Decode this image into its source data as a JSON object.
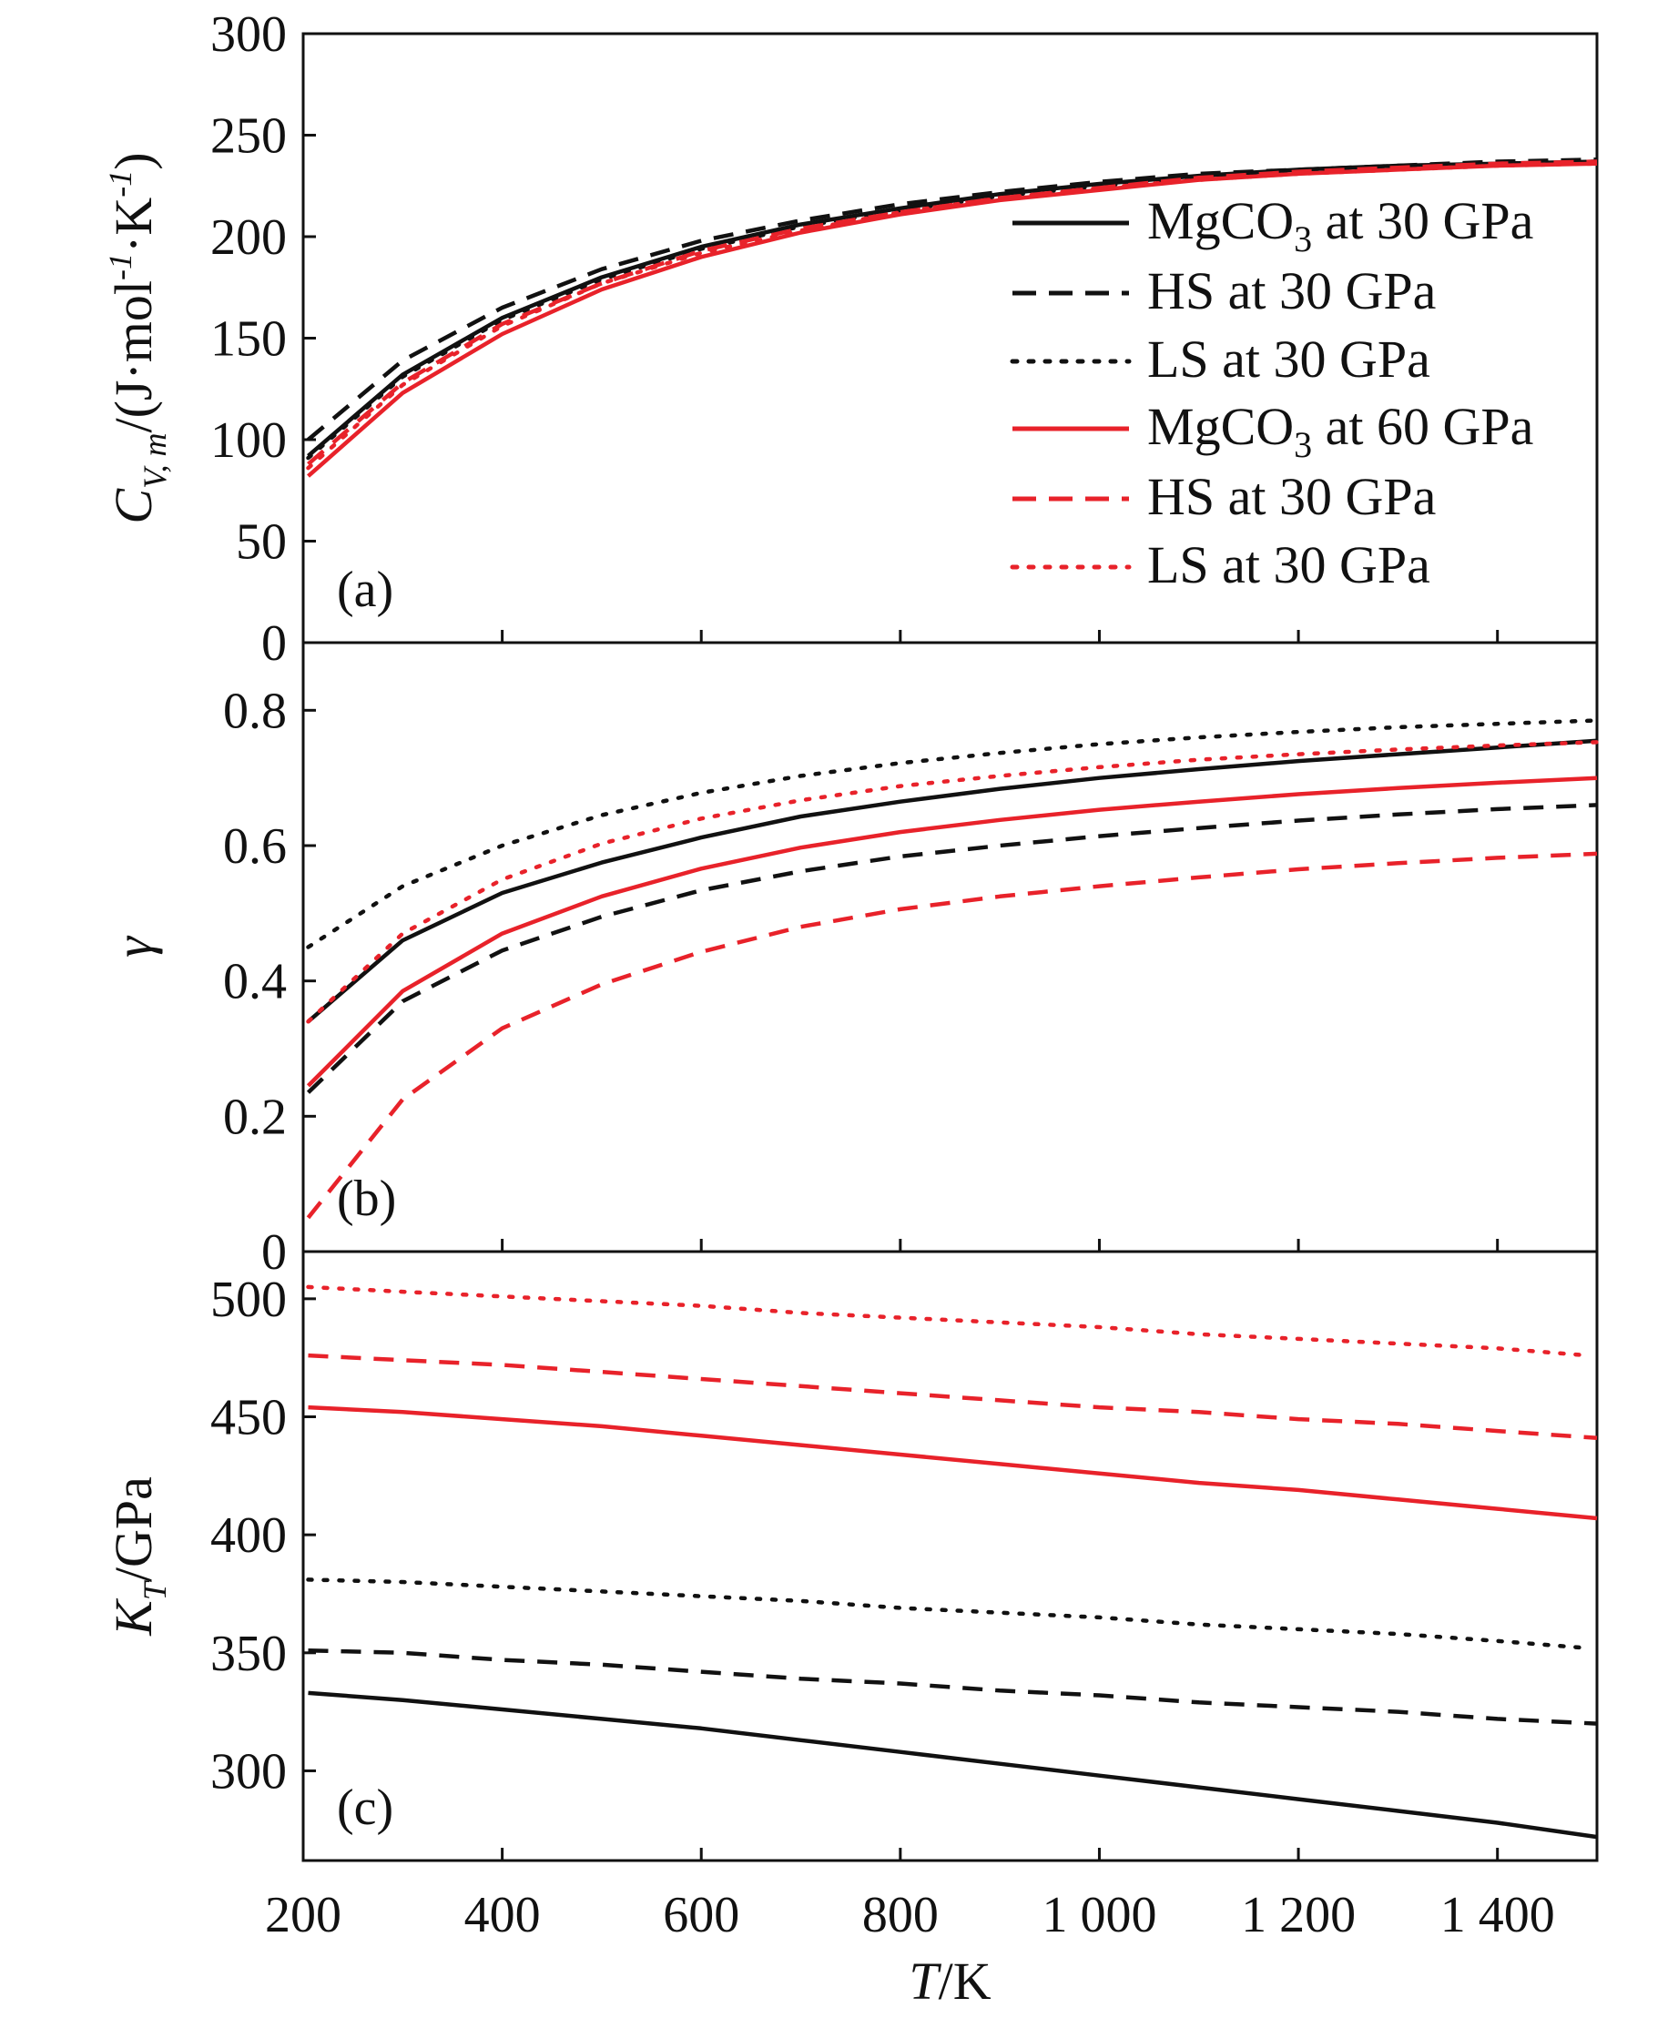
{
  "colors": {
    "black": "#111111",
    "red": "#e8222a"
  },
  "chart_data": [
    {
      "panel": "a",
      "tag": "(a)",
      "type": "line",
      "ylabel": "C_{V, m}/(J·mol^{-1}·K^{-1})",
      "xlim": [
        200,
        1500
      ],
      "ylim": [
        0,
        300
      ],
      "yticks": [
        0,
        50,
        100,
        150,
        200,
        250,
        300
      ],
      "ytick_labels": [
        "0",
        "50",
        "100",
        "150",
        "200",
        "250",
        "300"
      ],
      "legend_position": "right",
      "legend": [
        {
          "text": "MgCO",
          "sub": "3",
          "tail": " at 30 GPa",
          "color": "#111111",
          "dash": "solid"
        },
        {
          "text": "HS at 30 GPa",
          "color": "#111111",
          "dash": "dashed"
        },
        {
          "text": "LS at 30 GPa",
          "color": "#111111",
          "dash": "dotted"
        },
        {
          "text": "MgCO",
          "sub": "3",
          "tail": " at 60 GPa",
          "color": "#e8222a",
          "dash": "solid"
        },
        {
          "text": "HS at 30 GPa",
          "color": "#e8222a",
          "dash": "dashed"
        },
        {
          "text": "LS at 30 GPa",
          "color": "#e8222a",
          "dash": "dotted"
        }
      ],
      "series": [
        {
          "color": "#111111",
          "dash": "solid",
          "x": [
            205,
            300,
            400,
            500,
            600,
            700,
            800,
            900,
            1000,
            1100,
            1200,
            1300,
            1400,
            1500
          ],
          "y": [
            92,
            132,
            160,
            180,
            195,
            206,
            214,
            221,
            226,
            230,
            233,
            235,
            236,
            237
          ]
        },
        {
          "color": "#111111",
          "dash": "dashed",
          "x": [
            205,
            300,
            400,
            500,
            600,
            700,
            800,
            900,
            1000,
            1100,
            1200,
            1300,
            1400,
            1500
          ],
          "y": [
            100,
            139,
            165,
            184,
            198,
            208,
            216,
            222,
            227,
            231,
            233,
            235,
            237,
            238
          ]
        },
        {
          "color": "#111111",
          "dash": "dotted",
          "x": [
            205,
            300,
            400,
            500,
            600,
            700,
            800,
            900,
            1000,
            1100,
            1200,
            1300,
            1400,
            1500
          ],
          "y": [
            91,
            131,
            159,
            179,
            194,
            205,
            213,
            220,
            225,
            229,
            232,
            234,
            236,
            237
          ]
        },
        {
          "color": "#e8222a",
          "dash": "solid",
          "x": [
            205,
            300,
            400,
            500,
            600,
            700,
            800,
            900,
            1000,
            1100,
            1200,
            1300,
            1400,
            1500
          ],
          "y": [
            82,
            123,
            152,
            174,
            190,
            202,
            211,
            218,
            223,
            228,
            231,
            233,
            235,
            236
          ]
        },
        {
          "color": "#e8222a",
          "dash": "dashed",
          "x": [
            205,
            300,
            400,
            500,
            600,
            700,
            800,
            900,
            1000,
            1100,
            1200,
            1300,
            1400,
            1500
          ],
          "y": [
            88,
            128,
            157,
            177,
            193,
            204,
            212,
            219,
            224,
            229,
            232,
            234,
            236,
            237
          ]
        },
        {
          "color": "#e8222a",
          "dash": "dotted",
          "x": [
            205,
            300,
            400,
            500,
            600,
            700,
            800,
            900,
            1000,
            1100,
            1200,
            1300,
            1400,
            1500
          ],
          "y": [
            86,
            127,
            156,
            177,
            192,
            203,
            212,
            219,
            224,
            228,
            231,
            233,
            235,
            236
          ]
        }
      ]
    },
    {
      "panel": "b",
      "tag": "(b)",
      "type": "line",
      "ylabel": "γ",
      "xlim": [
        200,
        1500
      ],
      "ylim": [
        0,
        0.9
      ],
      "yticks": [
        0,
        0.2,
        0.4,
        0.6,
        0.8
      ],
      "ytick_labels": [
        "0",
        "0.2",
        "0.4",
        "0.6",
        "0.8"
      ],
      "series": [
        {
          "color": "#111111",
          "dash": "solid",
          "x": [
            205,
            300,
            400,
            500,
            600,
            700,
            800,
            900,
            1000,
            1100,
            1200,
            1300,
            1400,
            1500
          ],
          "y": [
            0.34,
            0.46,
            0.53,
            0.575,
            0.612,
            0.643,
            0.665,
            0.684,
            0.7,
            0.713,
            0.725,
            0.735,
            0.745,
            0.755
          ]
        },
        {
          "color": "#111111",
          "dash": "dashed",
          "x": [
            205,
            300,
            400,
            500,
            600,
            700,
            800,
            900,
            1000,
            1100,
            1200,
            1300,
            1400,
            1500
          ],
          "y": [
            0.235,
            0.37,
            0.445,
            0.495,
            0.534,
            0.562,
            0.584,
            0.6,
            0.614,
            0.626,
            0.637,
            0.646,
            0.654,
            0.66
          ]
        },
        {
          "color": "#111111",
          "dash": "dotted",
          "x": [
            205,
            300,
            400,
            500,
            600,
            700,
            800,
            900,
            1000,
            1100,
            1200,
            1300,
            1400,
            1500
          ],
          "y": [
            0.45,
            0.54,
            0.6,
            0.645,
            0.678,
            0.703,
            0.722,
            0.737,
            0.75,
            0.76,
            0.768,
            0.775,
            0.78,
            0.785
          ]
        },
        {
          "color": "#e8222a",
          "dash": "solid",
          "x": [
            205,
            300,
            400,
            500,
            600,
            700,
            800,
            900,
            1000,
            1100,
            1200,
            1300,
            1400,
            1500
          ],
          "y": [
            0.245,
            0.385,
            0.47,
            0.525,
            0.566,
            0.597,
            0.62,
            0.638,
            0.653,
            0.665,
            0.676,
            0.685,
            0.693,
            0.7
          ]
        },
        {
          "color": "#e8222a",
          "dash": "dashed",
          "x": [
            205,
            300,
            400,
            500,
            600,
            700,
            800,
            900,
            1000,
            1100,
            1200,
            1300,
            1400,
            1500
          ],
          "y": [
            0.05,
            0.225,
            0.33,
            0.395,
            0.443,
            0.48,
            0.506,
            0.525,
            0.54,
            0.553,
            0.565,
            0.574,
            0.582,
            0.588
          ]
        },
        {
          "color": "#e8222a",
          "dash": "dotted",
          "x": [
            205,
            300,
            400,
            500,
            600,
            700,
            800,
            900,
            1000,
            1100,
            1200,
            1300,
            1400,
            1500
          ],
          "y": [
            0.34,
            0.47,
            0.55,
            0.603,
            0.64,
            0.667,
            0.688,
            0.703,
            0.716,
            0.727,
            0.735,
            0.742,
            0.748,
            0.753
          ]
        }
      ]
    },
    {
      "panel": "c",
      "tag": "(c)",
      "type": "line",
      "ylabel": "K_{T}/GPa",
      "xlabel": "T/K",
      "xlim": [
        200,
        1500
      ],
      "ylim": [
        262,
        520
      ],
      "yticks": [
        300,
        350,
        400,
        450,
        500
      ],
      "ytick_labels": [
        "300",
        "350",
        "400",
        "450",
        "500"
      ],
      "xticks": [
        200,
        400,
        600,
        800,
        1000,
        1200,
        1400
      ],
      "xtick_labels": [
        "200",
        "400",
        "600",
        "800",
        "1 000",
        "1 200",
        "1 400"
      ],
      "series": [
        {
          "color": "#111111",
          "dash": "solid",
          "x": [
            205,
            300,
            400,
            500,
            600,
            700,
            800,
            900,
            1000,
            1100,
            1200,
            1300,
            1400,
            1500
          ],
          "y": [
            333,
            330,
            326,
            322,
            318,
            313,
            308,
            303,
            298,
            293,
            288,
            283,
            278,
            272
          ]
        },
        {
          "color": "#111111",
          "dash": "dashed",
          "x": [
            205,
            300,
            400,
            500,
            600,
            700,
            800,
            900,
            1000,
            1100,
            1200,
            1300,
            1400,
            1500
          ],
          "y": [
            351,
            350,
            347,
            345,
            342,
            339,
            337,
            334,
            332,
            329,
            327,
            325,
            322,
            320
          ]
        },
        {
          "color": "#111111",
          "dash": "dotted",
          "x": [
            205,
            300,
            400,
            500,
            600,
            700,
            800,
            900,
            1000,
            1100,
            1200,
            1300,
            1400,
            1490
          ],
          "y": [
            381,
            380,
            378,
            376,
            374,
            372,
            369,
            367,
            365,
            362,
            360,
            358,
            355,
            352
          ]
        },
        {
          "color": "#e8222a",
          "dash": "solid",
          "x": [
            205,
            300,
            400,
            500,
            600,
            700,
            800,
            900,
            1000,
            1100,
            1200,
            1300,
            1400,
            1500
          ],
          "y": [
            454,
            452,
            449,
            446,
            442,
            438,
            434,
            430,
            426,
            422,
            419,
            415,
            411,
            407
          ]
        },
        {
          "color": "#e8222a",
          "dash": "dashed",
          "x": [
            205,
            300,
            400,
            500,
            600,
            700,
            800,
            900,
            1000,
            1100,
            1200,
            1300,
            1400,
            1500
          ],
          "y": [
            476,
            474,
            472,
            469,
            466,
            463,
            460,
            457,
            454,
            452,
            449,
            447,
            444,
            441
          ]
        },
        {
          "color": "#e8222a",
          "dash": "dotted",
          "x": [
            205,
            300,
            400,
            500,
            600,
            700,
            800,
            900,
            1000,
            1100,
            1200,
            1300,
            1400,
            1490
          ],
          "y": [
            505,
            503,
            501,
            499,
            497,
            494,
            492,
            490,
            488,
            485,
            483,
            481,
            479,
            476
          ]
        }
      ]
    }
  ]
}
